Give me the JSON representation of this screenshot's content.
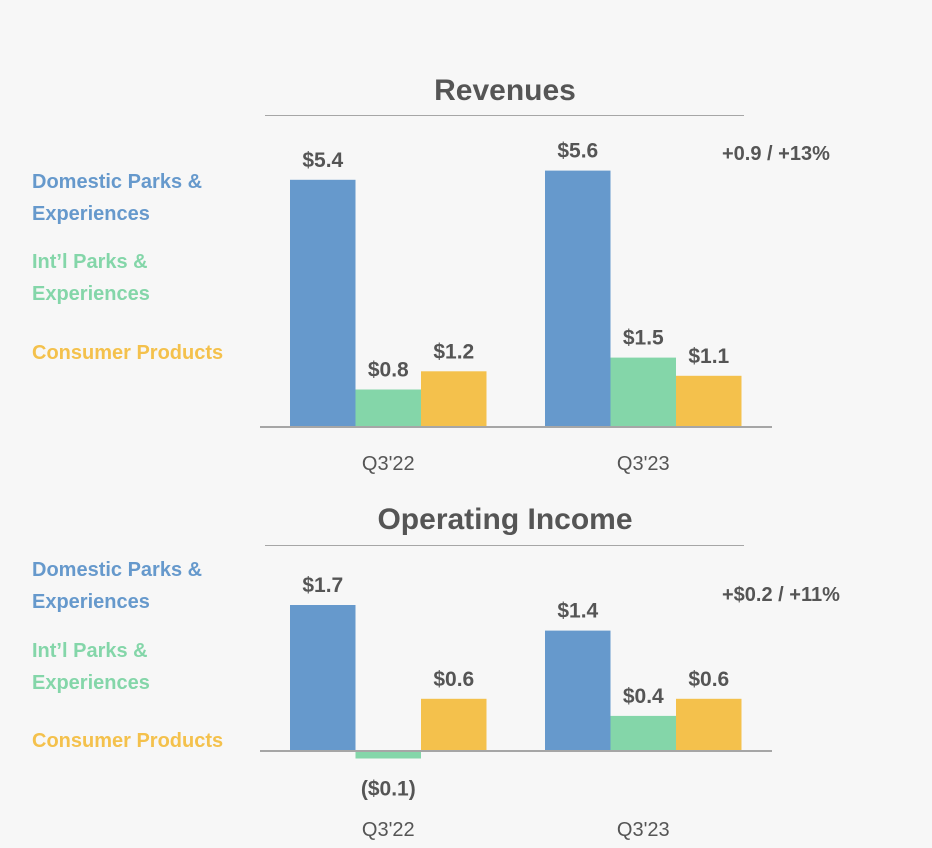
{
  "colors": {
    "domestic": "#6699cc",
    "intl": "#84d6a9",
    "consumer": "#f4c14c",
    "text": "#555555",
    "axis": "#a6a6a6"
  },
  "legend": [
    {
      "label": "Domestic Parks & Experiences",
      "line1": "Domestic Parks &",
      "line2": "Experiences",
      "color_key": "domestic"
    },
    {
      "label": "Int’l Parks & Experiences",
      "line1": "Int’l Parks &",
      "line2": "Experiences",
      "color_key": "intl"
    },
    {
      "label": "Consumer Products",
      "line1": "Consumer Products",
      "line2": "",
      "color_key": "consumer"
    }
  ],
  "chart_data": [
    {
      "type": "bar",
      "title": "Revenues",
      "categories": [
        "Q3'22",
        "Q3'23"
      ],
      "series": [
        {
          "name": "Domestic Parks & Experiences",
          "values": [
            5.4,
            5.6
          ],
          "labels": [
            "$5.4",
            "$5.6"
          ]
        },
        {
          "name": "Int’l Parks & Experiences",
          "values": [
            0.8,
            1.5
          ],
          "labels": [
            "$0.8",
            "$1.5"
          ]
        },
        {
          "name": "Consumer Products",
          "values": [
            1.2,
            1.1
          ],
          "labels": [
            "$1.2",
            "$1.1"
          ]
        }
      ],
      "annotation": "+0.9 / +13%",
      "unit": "$B",
      "ylim": [
        0,
        5.6
      ]
    },
    {
      "type": "bar",
      "title": "Operating Income",
      "categories": [
        "Q3'22",
        "Q3'23"
      ],
      "series": [
        {
          "name": "Domestic Parks & Experiences",
          "values": [
            1.7,
            1.4
          ],
          "labels": [
            "$1.7",
            "$1.4"
          ]
        },
        {
          "name": "Int’l Parks & Experiences",
          "values": [
            -0.1,
            0.4
          ],
          "labels": [
            "($0.1)",
            "$0.4"
          ]
        },
        {
          "name": "Consumer Products",
          "values": [
            0.6,
            0.6
          ],
          "labels": [
            "$0.6",
            "$0.6"
          ]
        }
      ],
      "annotation": "+$0.2 / +11%",
      "unit": "$B",
      "ylim": [
        -0.1,
        1.7
      ]
    }
  ]
}
